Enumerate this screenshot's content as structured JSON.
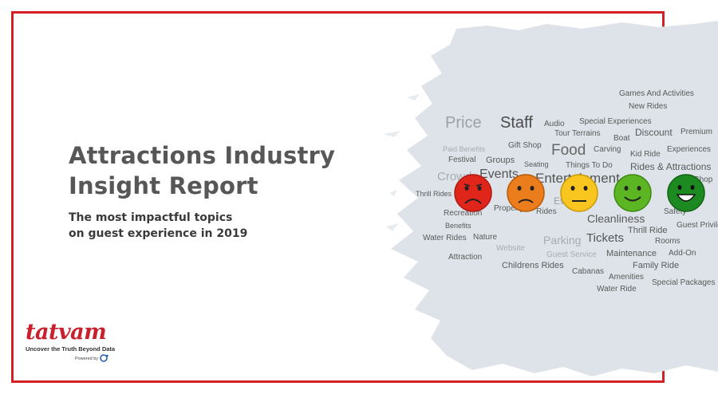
{
  "report": {
    "title_line1": "Attractions Industry",
    "title_line2": "Insight Report",
    "subtitle_line1": "The most impactful topics",
    "subtitle_line2": "on guest experience in 2019"
  },
  "brand": {
    "name": "tatvam",
    "tagline": "Uncover the Truth Beyond Data",
    "powered_by": "Powered by"
  },
  "colors": {
    "frame": "#d32027",
    "cloud_background": "#dde3e8",
    "brand_red": "#c8202c"
  },
  "sentiment_faces": [
    {
      "mood": "very-negative",
      "color": "#e0251b",
      "icon": "very-sad-face-icon"
    },
    {
      "mood": "negative",
      "color": "#ec7d1c",
      "icon": "sad-face-icon"
    },
    {
      "mood": "neutral",
      "color": "#f8c61e",
      "icon": "neutral-face-icon"
    },
    {
      "mood": "positive",
      "color": "#5cb623",
      "icon": "smile-face-icon"
    },
    {
      "mood": "very-positive",
      "color": "#1c8a21",
      "icon": "big-smile-face-icon"
    }
  ],
  "word_cloud": [
    "Games And Activities",
    "New Rides",
    "Price",
    "Staff",
    "Audio",
    "Special Experiences",
    "Tour Terrains",
    "Boat",
    "Discount",
    "Premium",
    "Paid Benefits",
    "Gift Shop",
    "Food",
    "Carving",
    "Kid Ride",
    "Experiences",
    "Festival",
    "Groups",
    "Seating",
    "Things To Do",
    "Rides & Attractions",
    "Crowd",
    "Events",
    "Entertainment",
    "Thrill Rides",
    "Shop",
    "Recreation",
    "Property",
    "Rides",
    "Safety",
    "Benefits",
    "Events",
    "Cleanliness",
    "Thrill Ride",
    "Guest Privileges",
    "Water Rides",
    "Nature",
    "Parking",
    "Tickets",
    "Rooms",
    "Attraction",
    "Website",
    "Guest Service",
    "Maintenance",
    "Add-On",
    "Childrens Rides",
    "Family Ride",
    "Cabanas",
    "Amenities",
    "Special Packages",
    "Water Ride"
  ]
}
